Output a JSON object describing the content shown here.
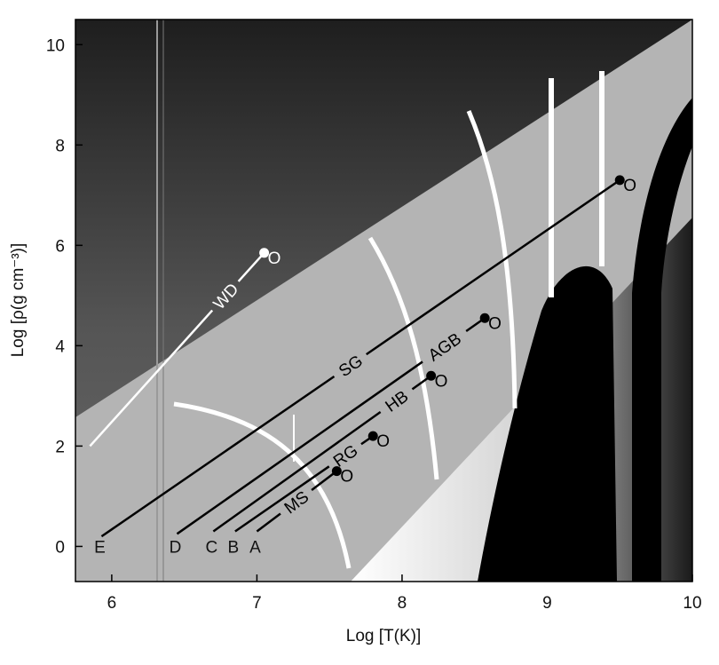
{
  "chart_data": {
    "type": "line",
    "title": "",
    "xlabel": "Log [T(K)]",
    "ylabel": "Log [ρ(g cm⁻³)]",
    "xlim": [
      5.75,
      10
    ],
    "ylim": [
      -0.7,
      10.5
    ],
    "x_ticks": [
      "6",
      "7",
      "8",
      "9",
      "10"
    ],
    "y_ticks": [
      "0",
      "2",
      "4",
      "6",
      "8",
      "10"
    ],
    "x_tick_values": [
      6,
      7,
      8,
      9,
      10
    ],
    "y_tick_values": [
      0,
      2,
      4,
      6,
      8,
      10
    ],
    "grid": false,
    "tracks": [
      {
        "name": "E",
        "start": [
          5.93,
          0.2
        ],
        "end": [
          9.5,
          7.3
        ],
        "label": "SG",
        "label_pos": [
          7.55,
          4.0
        ],
        "end_marker": "O"
      },
      {
        "name": "D",
        "start": [
          6.45,
          0.25
        ],
        "end": [
          8.57,
          4.55
        ],
        "label": "AGB",
        "label_pos": [
          8.3,
          3.95
        ],
        "end_marker": "O"
      },
      {
        "name": "C",
        "start": [
          6.7,
          0.3
        ],
        "end": [
          8.2,
          3.4
        ],
        "label": "HB",
        "label_pos": [
          7.95,
          2.95
        ],
        "end_marker": "O"
      },
      {
        "name": "B",
        "start": [
          6.85,
          0.3
        ],
        "end": [
          7.8,
          2.2
        ],
        "label": "RG",
        "label_pos": [
          7.6,
          1.85
        ],
        "end_marker": "O"
      },
      {
        "name": "A",
        "start": [
          7.0,
          0.3
        ],
        "end": [
          7.55,
          1.5
        ],
        "label": "MS",
        "label_pos": [
          7.28,
          0.85
        ],
        "end_marker": "O"
      },
      {
        "name": "WD",
        "start": [
          5.85,
          2.0
        ],
        "end": [
          7.05,
          5.85
        ],
        "label": "WD",
        "label_pos": [
          6.78,
          5.0
        ],
        "end_marker": "O"
      }
    ],
    "marker_labels": [
      "E",
      "D",
      "C",
      "B",
      "A"
    ],
    "end_marker_text": "O"
  },
  "colors": {
    "track": "#000000",
    "wd_track": "#ffffff",
    "regime_lines": "#ffffff",
    "light_band": "#b5b5b5",
    "dark_top": "#2a2a2a"
  }
}
